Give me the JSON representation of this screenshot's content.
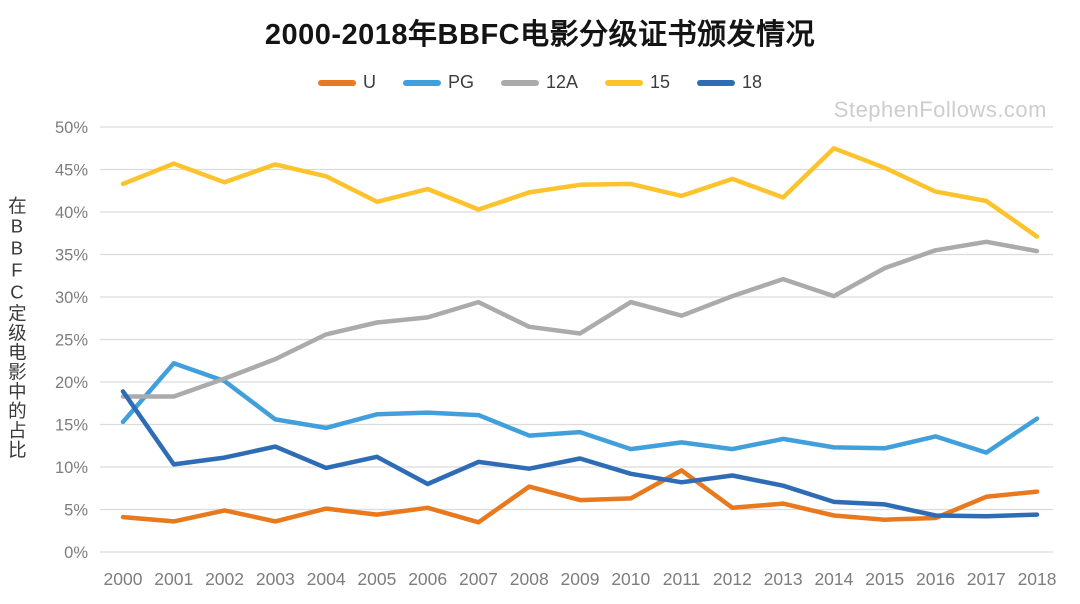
{
  "title": "2000-2018年BBFC电影分级证书颁发情况",
  "watermark": "StephenFollows.com",
  "legend": {
    "items": [
      {
        "label": "U"
      },
      {
        "label": "PG"
      },
      {
        "label": "12A"
      },
      {
        "label": "15"
      },
      {
        "label": "18"
      }
    ]
  },
  "y_axis": {
    "label": "在BBFC定级电影中的占比",
    "ticks": [
      "0%",
      "5%",
      "10%",
      "15%",
      "20%",
      "25%",
      "30%",
      "35%",
      "40%",
      "45%",
      "50%"
    ]
  },
  "x_axis": {
    "ticks": [
      "2000",
      "2001",
      "2002",
      "2003",
      "2004",
      "2005",
      "2006",
      "2007",
      "2008",
      "2009",
      "2010",
      "2011",
      "2012",
      "2013",
      "2014",
      "2015",
      "2016",
      "2017",
      "2018"
    ]
  },
  "colors": {
    "grid": "#dcdcdc",
    "axis_text": "#7d7d7d",
    "title_text": "#141414",
    "legend_text": "#3d3d3d",
    "watermark": "#cdcdcd",
    "series_U": "#E8791F",
    "series_PG": "#41A0DB",
    "series_12A": "#ABABAB",
    "series_15": "#FCC32D",
    "series_18": "#2E6CB5"
  },
  "chart_data": {
    "type": "line",
    "title": "2000-2018年BBFC电影分级证书颁发情况",
    "xlabel": "",
    "ylabel": "在BBFC定级电影中的占比",
    "ylim": [
      0,
      50
    ],
    "grid": true,
    "legend_position": "top",
    "x": [
      2000,
      2001,
      2002,
      2003,
      2004,
      2005,
      2006,
      2007,
      2008,
      2009,
      2010,
      2011,
      2012,
      2013,
      2014,
      2015,
      2016,
      2017,
      2018
    ],
    "series": [
      {
        "name": "U",
        "color": "#E8791F",
        "values": [
          4.1,
          3.6,
          4.9,
          3.6,
          5.1,
          4.4,
          5.2,
          3.5,
          7.7,
          6.1,
          6.3,
          9.6,
          5.2,
          5.7,
          4.3,
          3.8,
          4.0,
          6.5,
          7.1
        ]
      },
      {
        "name": "PG",
        "color": "#41A0DB",
        "values": [
          15.3,
          22.2,
          20.1,
          15.6,
          14.6,
          16.2,
          16.4,
          16.1,
          13.7,
          14.1,
          12.1,
          12.9,
          12.1,
          13.3,
          12.3,
          12.2,
          13.6,
          11.7,
          15.7
        ]
      },
      {
        "name": "12A",
        "color": "#ABABAB",
        "values": [
          18.3,
          18.3,
          20.4,
          22.7,
          25.6,
          27.0,
          27.6,
          29.4,
          26.5,
          25.7,
          29.4,
          27.8,
          30.1,
          32.1,
          30.1,
          33.4,
          35.5,
          36.5,
          35.4
        ]
      },
      {
        "name": "15",
        "color": "#FCC32D",
        "values": [
          43.3,
          45.7,
          43.5,
          45.6,
          44.2,
          41.2,
          42.7,
          40.3,
          42.3,
          43.2,
          43.3,
          41.9,
          43.9,
          41.7,
          47.5,
          45.2,
          42.4,
          41.3,
          37.1
        ]
      },
      {
        "name": "18",
        "color": "#2E6CB5",
        "values": [
          18.9,
          10.3,
          11.1,
          12.4,
          9.9,
          11.2,
          8.0,
          10.6,
          9.8,
          11.0,
          9.2,
          8.2,
          9.0,
          7.8,
          5.9,
          5.6,
          4.3,
          4.2,
          4.4
        ]
      }
    ]
  }
}
